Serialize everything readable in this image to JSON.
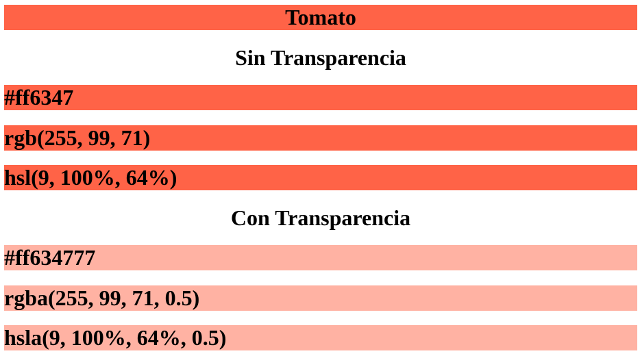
{
  "title": "Tomato",
  "sections": {
    "opaque": {
      "heading": "Sin Transparencia",
      "rows": [
        "#ff6347",
        "rgb(255, 99, 71)",
        "hsl(9, 100%, 64%)"
      ]
    },
    "transparent": {
      "heading": "Con Transparencia",
      "rows": [
        "#ff634777",
        "rgba(255, 99, 71, 0.5)",
        "hsla(9, 100%, 64%, 0.5)"
      ]
    }
  },
  "colors": {
    "tomato": "#ff6347",
    "tomato_transparent": "#ffb2a3",
    "background": "#ffffff",
    "text": "#000000"
  }
}
